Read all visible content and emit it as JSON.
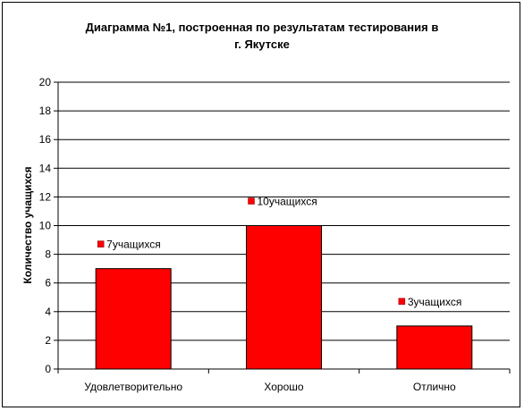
{
  "chart_data": {
    "type": "bar",
    "title_lines": [
      "Диаграмма №1, построенная по результатам тестирования  в",
      "г. Якутске"
    ],
    "xlabel": "",
    "ylabel": "Количество учащихся",
    "categories": [
      "Удовлетворительно",
      "Хорошо",
      "Отлично"
    ],
    "values": [
      7,
      10,
      3
    ],
    "data_labels": [
      "7учащихся",
      "10учащихся",
      "3учащихся"
    ],
    "ylim": [
      0,
      20
    ],
    "yticks": [
      0,
      2,
      4,
      6,
      8,
      10,
      12,
      14,
      16,
      18,
      20
    ],
    "grid": true,
    "legend": "none",
    "colors": {
      "bar": "#ff0000",
      "bar_stroke": "#000000",
      "label_marker": "#ff0000",
      "grid": "#000000"
    }
  }
}
